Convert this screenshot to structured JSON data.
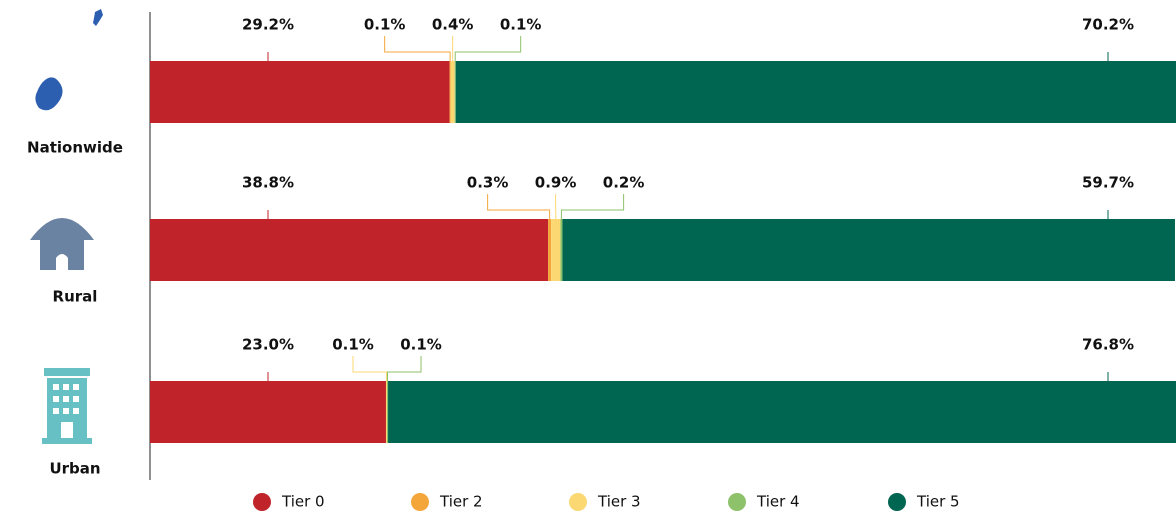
{
  "chart_data": {
    "type": "stacked-bar-horizontal",
    "categories": [
      "Nationwide",
      "Rural",
      "Urban"
    ],
    "series": [
      {
        "name": "Tier 0",
        "color": "#c0232a",
        "values": [
          29.2,
          38.8,
          23.0
        ],
        "value_labels": [
          "29.2%",
          "38.8%",
          "23.0%"
        ]
      },
      {
        "name": "Tier 2",
        "color": "#f4a63a",
        "values": [
          0.1,
          0.3,
          null
        ],
        "value_labels": [
          "0.1%",
          "0.3%",
          null
        ]
      },
      {
        "name": "Tier 3",
        "color": "#fbd872",
        "values": [
          0.4,
          0.9,
          0.1
        ],
        "value_labels": [
          "0.4%",
          "0.9%",
          "0.1%"
        ]
      },
      {
        "name": "Tier 4",
        "color": "#8dc26b",
        "values": [
          0.1,
          0.2,
          0.1
        ],
        "value_labels": [
          "0.1%",
          "0.2%",
          "0.1%"
        ]
      },
      {
        "name": "Tier 5",
        "color": "#006551",
        "values": [
          70.2,
          59.7,
          76.8
        ],
        "value_labels": [
          "70.2%",
          "59.7%",
          "76.8%"
        ]
      }
    ],
    "xlim": [
      0,
      100
    ]
  }
}
